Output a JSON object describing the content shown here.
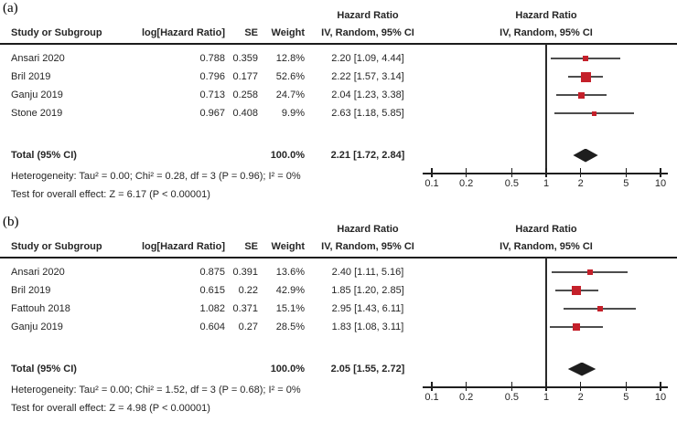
{
  "colors": {
    "marker": "#c4202a",
    "diamond": "#1e1e1e",
    "ci_line": "#4d4d4d",
    "axis": "#1f1f1f"
  },
  "chart_data": [
    {
      "type": "forest",
      "panel": "(a)",
      "effect_header": "Hazard Ratio",
      "method_header": "IV, Random, 95% CI",
      "columns": [
        "Study or Subgroup",
        "log[Hazard Ratio]",
        "SE",
        "Weight",
        "IV, Random, 95% CI"
      ],
      "x_scale": "log",
      "x_ticks": [
        0.1,
        0.2,
        0.5,
        1,
        2,
        5,
        10
      ],
      "studies": [
        {
          "study": "Ansari 2020",
          "log_hr": "0.788",
          "se": "0.359",
          "weight": "12.8%",
          "weight_pct": 12.8,
          "ci_text": "2.20 [1.09, 4.44]",
          "hr": 2.2,
          "ci_low": 1.09,
          "ci_high": 4.44
        },
        {
          "study": "Bril 2019",
          "log_hr": "0.796",
          "se": "0.177",
          "weight": "52.6%",
          "weight_pct": 52.6,
          "ci_text": "2.22 [1.57, 3.14]",
          "hr": 2.22,
          "ci_low": 1.57,
          "ci_high": 3.14
        },
        {
          "study": "Ganju 2019",
          "log_hr": "0.713",
          "se": "0.258",
          "weight": "24.7%",
          "weight_pct": 24.7,
          "ci_text": "2.04 [1.23, 3.38]",
          "hr": 2.04,
          "ci_low": 1.23,
          "ci_high": 3.38
        },
        {
          "study": "Stone 2019",
          "log_hr": "0.967",
          "se": "0.408",
          "weight": "9.9%",
          "weight_pct": 9.9,
          "ci_text": "2.63 [1.18, 5.85]",
          "hr": 2.63,
          "ci_low": 1.18,
          "ci_high": 5.85
        }
      ],
      "total": {
        "label": "Total (95% CI)",
        "weight": "100.0%",
        "ci_text": "2.21 [1.72, 2.84]",
        "hr": 2.21,
        "ci_low": 1.72,
        "ci_high": 2.84
      },
      "heterogeneity": "Heterogeneity: Tau² = 0.00; Chi² = 0.28, df = 3 (P = 0.96); I² = 0%",
      "overall": "Test for overall effect: Z = 6.17 (P < 0.00001)"
    },
    {
      "type": "forest",
      "panel": "(b)",
      "effect_header": "Hazard Ratio",
      "method_header": "IV, Random, 95% CI",
      "columns": [
        "Study or Subgroup",
        "log[Hazard Ratio]",
        "SE",
        "Weight",
        "IV, Random, 95% CI"
      ],
      "x_scale": "log",
      "x_ticks": [
        0.1,
        0.2,
        0.5,
        1,
        2,
        5,
        10
      ],
      "studies": [
        {
          "study": "Ansari 2020",
          "log_hr": "0.875",
          "se": "0.391",
          "weight": "13.6%",
          "weight_pct": 13.6,
          "ci_text": "2.40 [1.11, 5.16]",
          "hr": 2.4,
          "ci_low": 1.11,
          "ci_high": 5.16
        },
        {
          "study": "Bril 2019",
          "log_hr": "0.615",
          "se": "0.22",
          "weight": "42.9%",
          "weight_pct": 42.9,
          "ci_text": "1.85 [1.20, 2.85]",
          "hr": 1.85,
          "ci_low": 1.2,
          "ci_high": 2.85
        },
        {
          "study": "Fattouh 2018",
          "log_hr": "1.082",
          "se": "0.371",
          "weight": "15.1%",
          "weight_pct": 15.1,
          "ci_text": "2.95 [1.43, 6.11]",
          "hr": 2.95,
          "ci_low": 1.43,
          "ci_high": 6.11
        },
        {
          "study": "Ganju 2019",
          "log_hr": "0.604",
          "se": "0.27",
          "weight": "28.5%",
          "weight_pct": 28.5,
          "ci_text": "1.83 [1.08, 3.11]",
          "hr": 1.83,
          "ci_low": 1.08,
          "ci_high": 3.11
        }
      ],
      "total": {
        "label": "Total (95% CI)",
        "weight": "100.0%",
        "ci_text": "2.05 [1.55, 2.72]",
        "hr": 2.05,
        "ci_low": 1.55,
        "ci_high": 2.72
      },
      "heterogeneity": "Heterogeneity: Tau² = 0.00; Chi² = 1.52, df = 3 (P = 0.68); I² = 0%",
      "overall": "Test for overall effect: Z = 4.98 (P < 0.00001)"
    }
  ]
}
